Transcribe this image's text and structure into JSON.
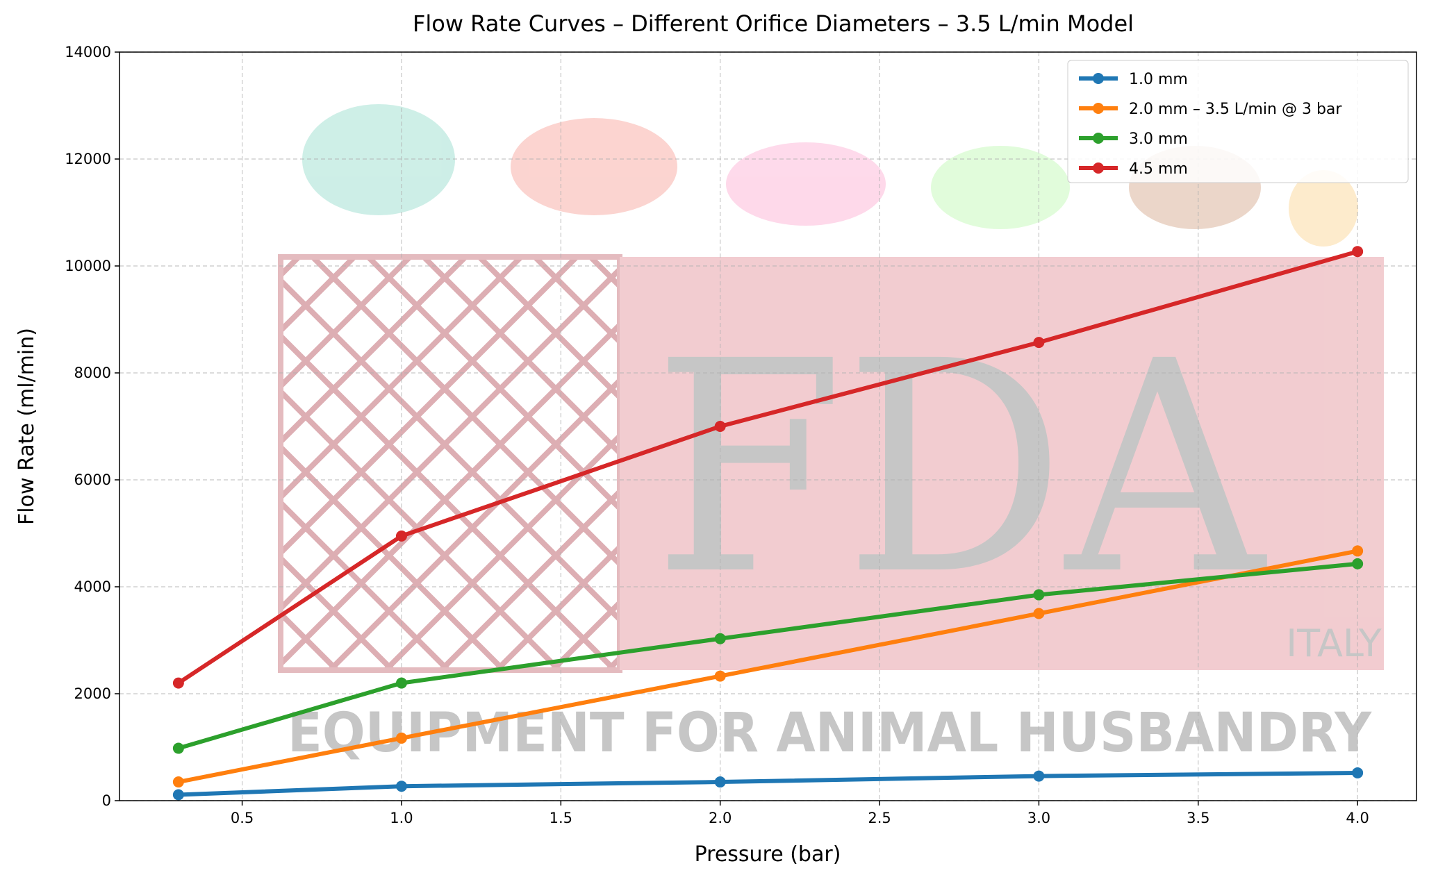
{
  "chart_data": {
    "type": "line",
    "title": "Flow Rate Curves – Different Orifice Diameters – 3.5 L/min Model",
    "xlabel": "Pressure (bar)",
    "ylabel": "Flow Rate (ml/min)",
    "xlim": [
      0.115,
      4.185
    ],
    "ylim": [
      0,
      14000
    ],
    "xticks": [
      "0.5",
      "1.0",
      "1.5",
      "2.0",
      "2.5",
      "3.0",
      "3.5",
      "4.0"
    ],
    "yticks": [
      "0",
      "2000",
      "4000",
      "6000",
      "8000",
      "10000",
      "12000",
      "14000"
    ],
    "grid": true,
    "legend_placement": "top-right",
    "x": [
      0.3,
      1.0,
      2.0,
      3.0,
      4.0
    ],
    "series": [
      {
        "name": "1.0 mm",
        "color": "#1f77b4",
        "values": [
          110,
          270,
          350,
          460,
          520
        ]
      },
      {
        "name": "2.0 mm – 3.5 L/min @ 3 bar",
        "color": "#ff7f0e",
        "values": [
          350,
          1170,
          2330,
          3500,
          4670
        ]
      },
      {
        "name": "3.0 mm",
        "color": "#2ca02c",
        "values": [
          980,
          2200,
          3030,
          3850,
          4430
        ]
      },
      {
        "name": "4.5 mm",
        "color": "#d62728",
        "values": [
          2200,
          4950,
          7000,
          8570,
          10270
        ]
      }
    ]
  },
  "watermark": {
    "logo": "FDA",
    "country": "ITALY",
    "tagline": "EQUIPMENT FOR ANIMAL HUSBANDRY"
  }
}
